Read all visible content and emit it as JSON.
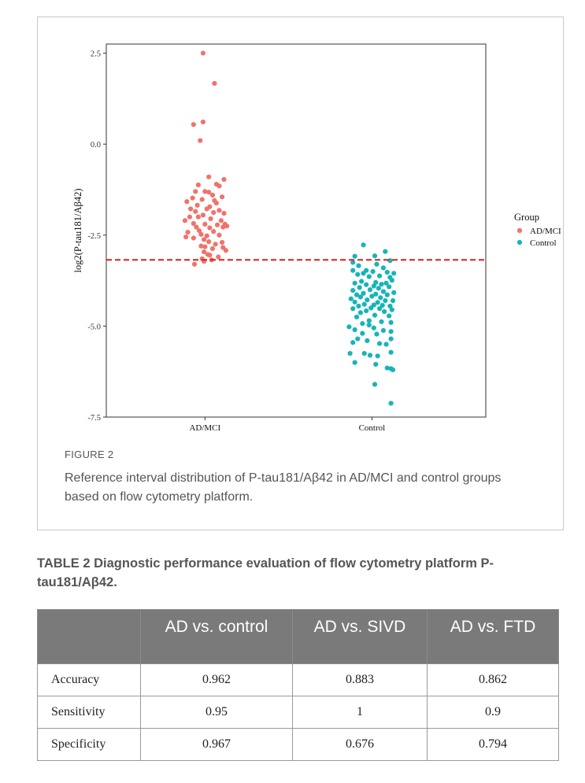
{
  "figure": {
    "label": "FIGURE 2",
    "caption": "Reference interval distribution of P-tau181/Aβ42 in AD/MCI and control groups based on flow cytometry platform."
  },
  "chart_data": {
    "type": "scatter",
    "ylabel": "log2(P-tau181/Aβ42)",
    "xlabel": "",
    "categories": [
      "AD/MCI",
      "Control"
    ],
    "y_ticks": [
      "2.5",
      "0.0",
      "-2.5",
      "-5.0",
      "-7.5"
    ],
    "y_tick_values": [
      2.5,
      0.0,
      -2.5,
      -5.0,
      -7.5
    ],
    "ylim": [
      -7.5,
      2.75
    ],
    "grid": false,
    "legend": {
      "title": "Group",
      "placement": "right",
      "entries": [
        {
          "name": "AD/MCI",
          "color": "#f0736b"
        },
        {
          "name": "Control",
          "color": "#15b5b8"
        }
      ]
    },
    "reference_line": {
      "y": -3.18,
      "color": "#e41a1c",
      "style": "dashed"
    },
    "series": [
      {
        "name": "AD/MCI",
        "color": "#f0736b",
        "points": [
          [
            -0.02,
            2.5
          ],
          [
            0.1,
            1.67
          ],
          [
            -0.12,
            0.54
          ],
          [
            -0.02,
            0.61
          ],
          [
            -0.05,
            0.1
          ],
          [
            0.04,
            -0.9
          ],
          [
            0.2,
            -0.97
          ],
          [
            0.12,
            -1.1
          ],
          [
            -0.07,
            -1.12
          ],
          [
            0.15,
            -1.15
          ],
          [
            -0.1,
            -1.3
          ],
          [
            0.0,
            -1.3
          ],
          [
            0.04,
            -1.32
          ],
          [
            0.08,
            -1.4
          ],
          [
            0.18,
            -1.45
          ],
          [
            -0.13,
            -1.48
          ],
          [
            -0.03,
            -1.52
          ],
          [
            0.1,
            -1.55
          ],
          [
            -0.19,
            -1.58
          ],
          [
            0.12,
            -1.62
          ],
          [
            -0.08,
            -1.68
          ],
          [
            0.05,
            -1.72
          ],
          [
            -0.15,
            -1.78
          ],
          [
            0.02,
            -1.78
          ],
          [
            -0.1,
            -1.85
          ],
          [
            0.15,
            -1.82
          ],
          [
            0.09,
            -1.88
          ],
          [
            -0.02,
            -1.95
          ],
          [
            0.2,
            -1.9
          ],
          [
            -0.16,
            -2.0
          ],
          [
            -0.07,
            -2.0
          ],
          [
            0.06,
            -2.05
          ],
          [
            0.17,
            -2.1
          ],
          [
            -0.21,
            -2.1
          ],
          [
            -0.12,
            -2.18
          ],
          [
            0.0,
            -2.2
          ],
          [
            0.13,
            -2.22
          ],
          [
            0.21,
            -2.2
          ],
          [
            -0.09,
            -2.28
          ],
          [
            0.05,
            -2.3
          ],
          [
            0.19,
            -2.28
          ],
          [
            0.23,
            -2.25
          ],
          [
            -0.06,
            -2.38
          ],
          [
            0.09,
            -2.4
          ],
          [
            -0.18,
            -2.42
          ],
          [
            -0.04,
            -2.48
          ],
          [
            0.02,
            -2.52
          ],
          [
            0.15,
            -2.5
          ],
          [
            -0.2,
            -2.55
          ],
          [
            -0.12,
            -2.58
          ],
          [
            -0.01,
            -2.62
          ],
          [
            0.04,
            -2.68
          ],
          [
            0.11,
            -2.75
          ],
          [
            0.18,
            -2.7
          ],
          [
            -0.04,
            -2.8
          ],
          [
            0.0,
            -2.82
          ],
          [
            0.19,
            -2.84
          ],
          [
            0.08,
            -2.87
          ],
          [
            0.22,
            -2.92
          ],
          [
            -0.01,
            -2.96
          ],
          [
            0.03,
            -3.03
          ],
          [
            0.05,
            -3.05
          ],
          [
            0.14,
            -3.1
          ],
          [
            -0.03,
            -3.15
          ],
          [
            0.07,
            -3.18
          ],
          [
            -0.01,
            -3.22
          ],
          [
            -0.11,
            -3.3
          ]
        ]
      },
      {
        "name": "Control",
        "color": "#15b5b8",
        "points": [
          [
            -0.09,
            -2.77
          ],
          [
            0.14,
            -2.95
          ],
          [
            -0.18,
            -3.08
          ],
          [
            0.03,
            -3.07
          ],
          [
            0.19,
            -3.2
          ],
          [
            -0.2,
            -3.25
          ],
          [
            0.05,
            -3.3
          ],
          [
            -0.14,
            -3.34
          ],
          [
            0.12,
            -3.4
          ],
          [
            -0.06,
            -3.47
          ],
          [
            -0.2,
            -3.47
          ],
          [
            0.01,
            -3.5
          ],
          [
            0.16,
            -3.52
          ],
          [
            -0.09,
            -3.55
          ],
          [
            0.23,
            -3.55
          ],
          [
            -0.15,
            -3.58
          ],
          [
            0.08,
            -3.62
          ],
          [
            -0.03,
            -3.64
          ],
          [
            0.19,
            -3.66
          ],
          [
            0.21,
            -3.74
          ],
          [
            -0.11,
            -3.77
          ],
          [
            0.04,
            -3.8
          ],
          [
            0.15,
            -3.82
          ],
          [
            -0.18,
            -3.82
          ],
          [
            0.1,
            -3.85
          ],
          [
            -0.06,
            -3.86
          ],
          [
            0.02,
            -3.9
          ],
          [
            0.18,
            -3.92
          ],
          [
            -0.13,
            -3.94
          ],
          [
            0.07,
            -3.96
          ],
          [
            -0.02,
            -4.0
          ],
          [
            -0.2,
            -4.02
          ],
          [
            0.12,
            -4.05
          ],
          [
            0.23,
            -4.08
          ],
          [
            -0.09,
            -4.1
          ],
          [
            0.04,
            -4.12
          ],
          [
            -0.16,
            -4.14
          ],
          [
            0.16,
            -4.14
          ],
          [
            0.0,
            -4.18
          ],
          [
            -0.12,
            -4.2
          ],
          [
            0.09,
            -4.22
          ],
          [
            -0.22,
            -4.25
          ],
          [
            -0.05,
            -4.28
          ],
          [
            0.14,
            -4.3
          ],
          [
            0.22,
            -4.3
          ],
          [
            -0.18,
            -4.34
          ],
          [
            0.06,
            -4.35
          ],
          [
            -0.08,
            -4.4
          ],
          [
            0.02,
            -4.42
          ],
          [
            0.11,
            -4.43
          ],
          [
            -0.14,
            -4.45
          ],
          [
            0.19,
            -4.45
          ],
          [
            -0.01,
            -4.5
          ],
          [
            0.08,
            -4.52
          ],
          [
            -0.2,
            -4.52
          ],
          [
            0.21,
            -4.55
          ],
          [
            -0.06,
            -4.58
          ],
          [
            0.13,
            -4.6
          ],
          [
            -0.12,
            -4.63
          ],
          [
            0.03,
            -4.7
          ],
          [
            0.18,
            -4.72
          ],
          [
            -0.16,
            -4.75
          ],
          [
            -0.03,
            -4.85
          ],
          [
            0.1,
            -4.88
          ],
          [
            0.2,
            -4.9
          ],
          [
            -0.1,
            -4.93
          ],
          [
            -0.03,
            -4.97
          ],
          [
            -0.24,
            -5.02
          ],
          [
            0.02,
            -5.05
          ],
          [
            -0.18,
            -5.1
          ],
          [
            0.12,
            -5.12
          ],
          [
            0.2,
            -5.15
          ],
          [
            -0.1,
            -5.2
          ],
          [
            0.05,
            -5.22
          ],
          [
            -0.15,
            -5.35
          ],
          [
            -0.05,
            -5.4
          ],
          [
            0.2,
            -5.35
          ],
          [
            -0.2,
            -5.45
          ],
          [
            0.08,
            -5.48
          ],
          [
            0.15,
            -5.5
          ],
          [
            -0.23,
            -5.75
          ],
          [
            -0.08,
            -5.75
          ],
          [
            0.2,
            -5.72
          ],
          [
            -0.02,
            -5.8
          ],
          [
            0.06,
            -5.82
          ],
          [
            -0.18,
            -6.0
          ],
          [
            0.04,
            -6.05
          ],
          [
            0.16,
            -6.15
          ],
          [
            0.2,
            -6.17
          ],
          [
            0.22,
            -6.2
          ],
          [
            0.03,
            -6.6
          ],
          [
            0.2,
            -7.12
          ]
        ]
      }
    ]
  },
  "table": {
    "title": "TABLE 2  Diagnostic performance evaluation of flow cytometry platform P-tau181/Aβ42.",
    "headers": [
      "",
      "AD vs. control",
      "AD vs. SIVD",
      "AD vs. FTD"
    ],
    "rows": [
      {
        "label": "Accuracy",
        "values": [
          "0.962",
          "0.883",
          "0.862"
        ]
      },
      {
        "label": "Sensitivity",
        "values": [
          "0.95",
          "1",
          "0.9"
        ]
      },
      {
        "label": "Specificity",
        "values": [
          "0.967",
          "0.676",
          "0.794"
        ]
      }
    ]
  }
}
